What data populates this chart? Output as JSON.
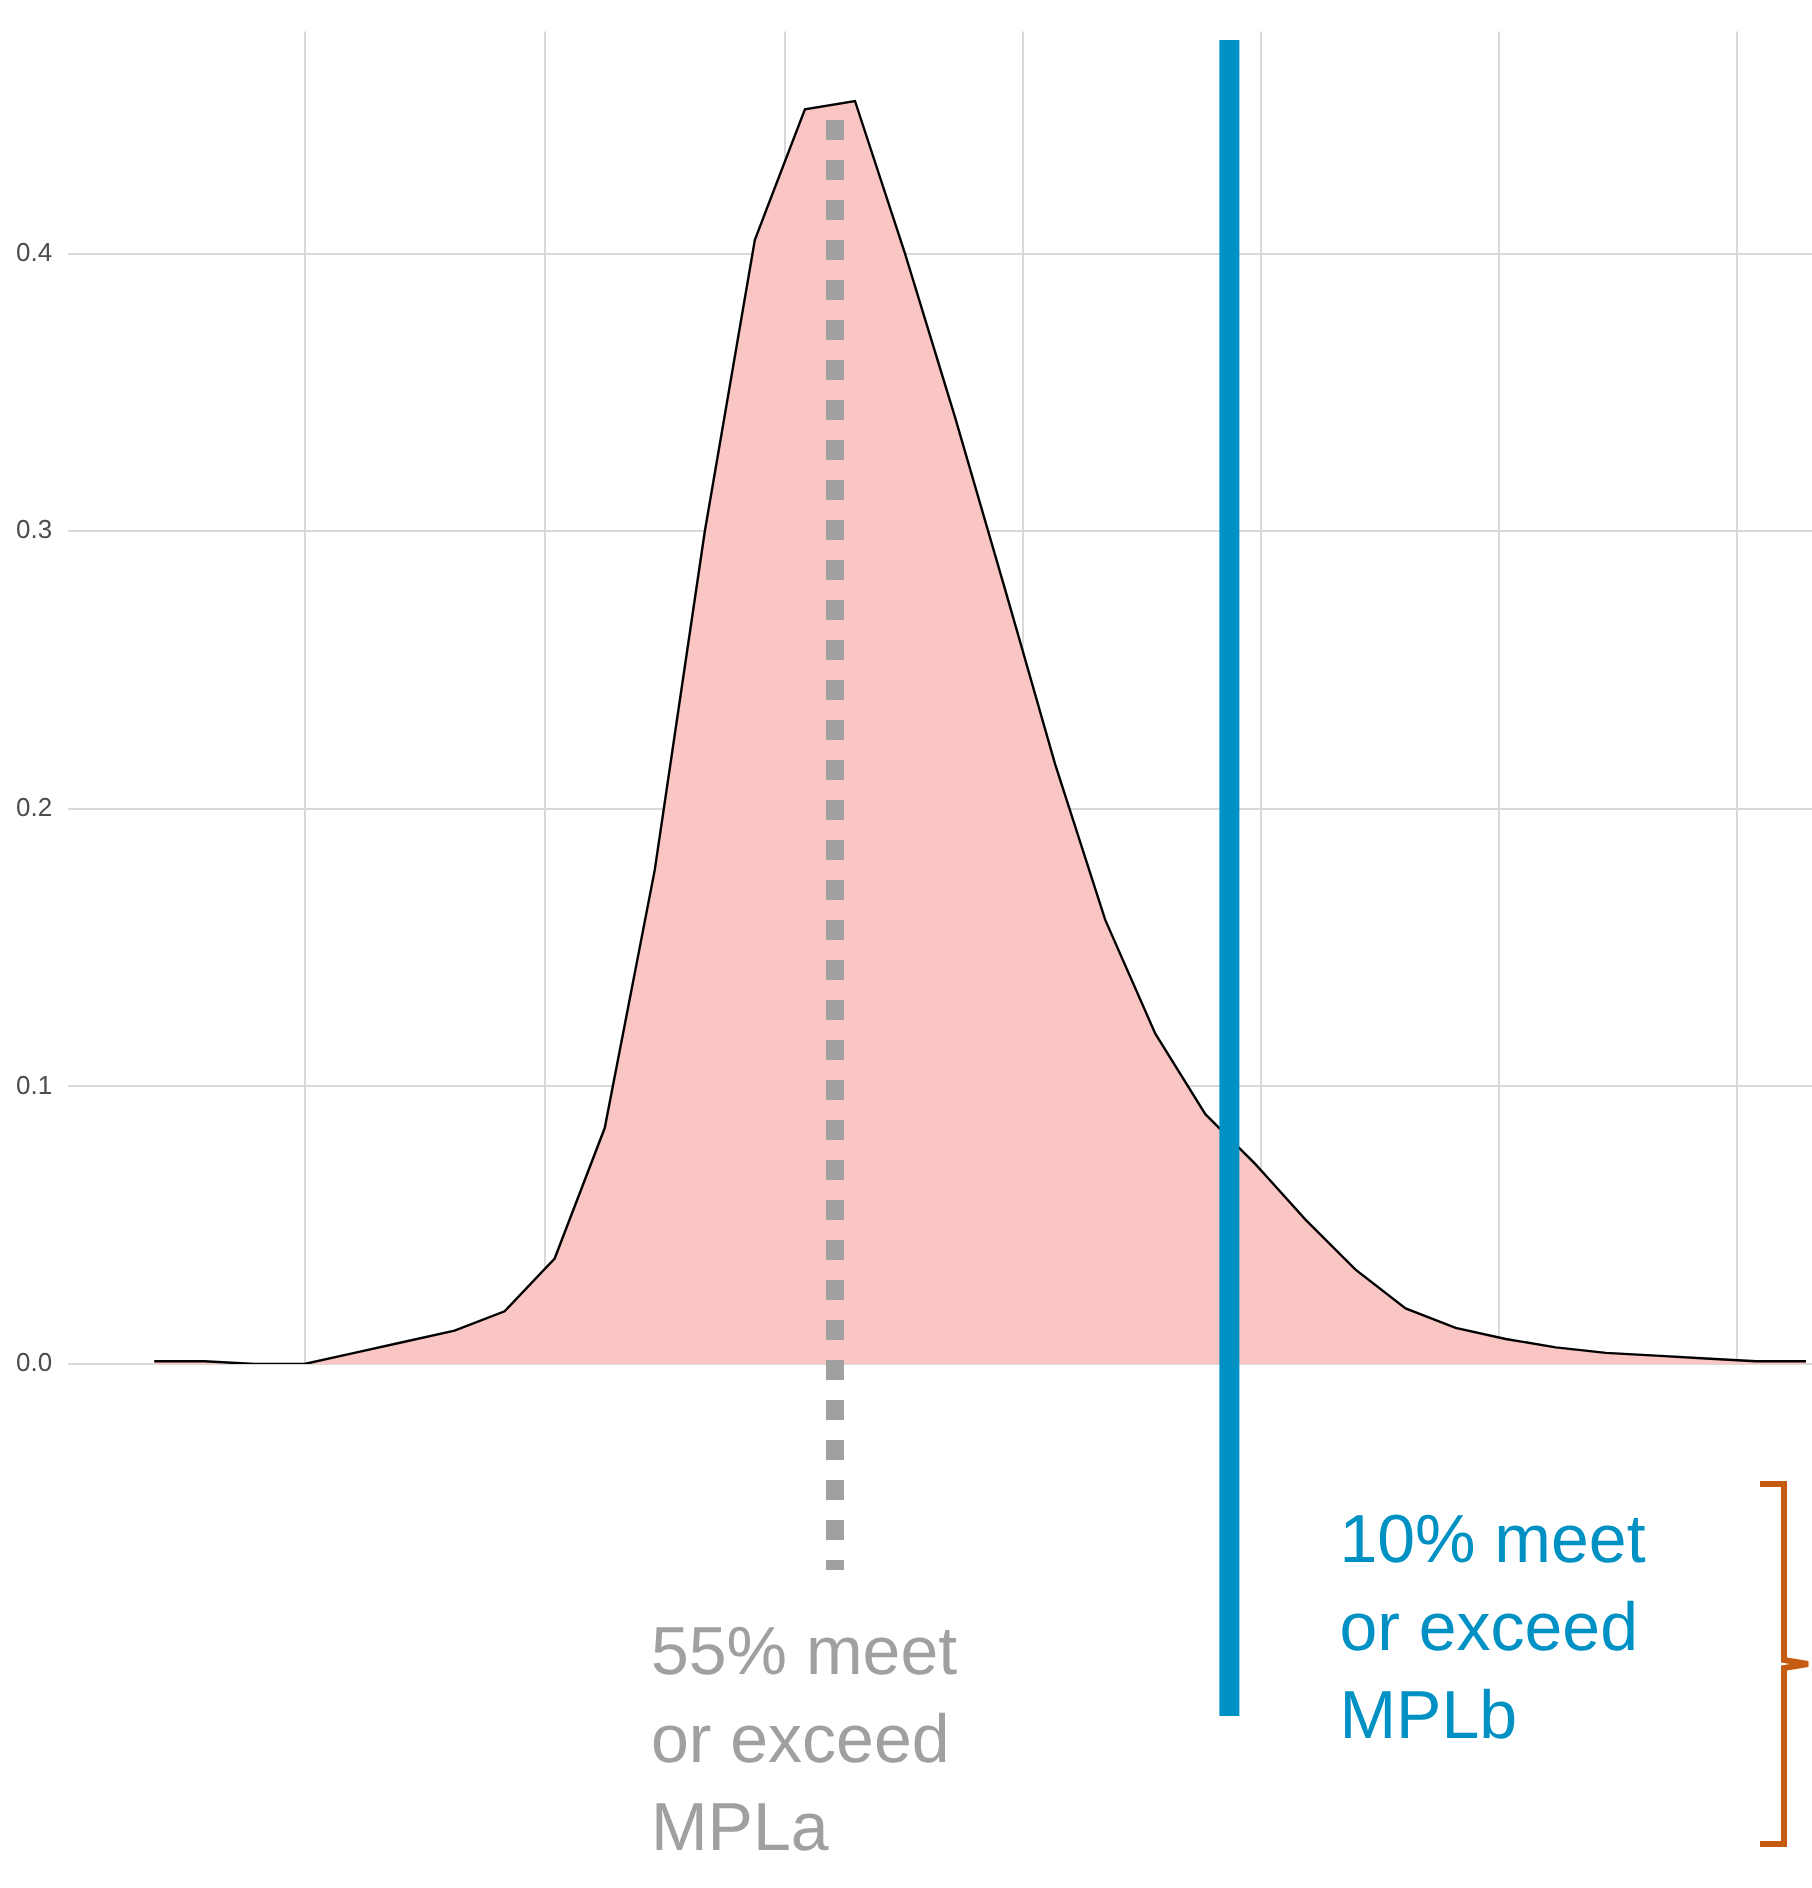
{
  "chart_data": {
    "type": "area",
    "grid": true,
    "legend": false,
    "ylim": [
      0,
      0.48
    ],
    "yticks": [
      {
        "value": 0,
        "label": "0.0"
      },
      0.1,
      0.2,
      0.3,
      0.4
    ],
    "categories": [
      null,
      null,
      null,
      null,
      null,
      null,
      null,
      null,
      null,
      null,
      null,
      null,
      null,
      null,
      null,
      null,
      null,
      null,
      null,
      null,
      null,
      null,
      null,
      null,
      null,
      null,
      null,
      null,
      null,
      null,
      null,
      null,
      null,
      null
    ],
    "series": [
      {
        "color": "#f9c6c3",
        "values": [
          0.001,
          0.001,
          0,
          0,
          0.004,
          0.008,
          0.012,
          0.019,
          0.038,
          0.085,
          0.178,
          0.3,
          0.405,
          0.452,
          0.455,
          0.4,
          0.341,
          0.279,
          0.216,
          0.16,
          0.119,
          0.09,
          0.072,
          0.052,
          0.034,
          0.02,
          0.013,
          0.009,
          0.006,
          0.004,
          0.003,
          0.002,
          0.001,
          0.001
        ]
      }
    ],
    "annotations": [
      "55% meet or exceed MPLa",
      "10% meet or exceed MPLb"
    ]
  }
}
